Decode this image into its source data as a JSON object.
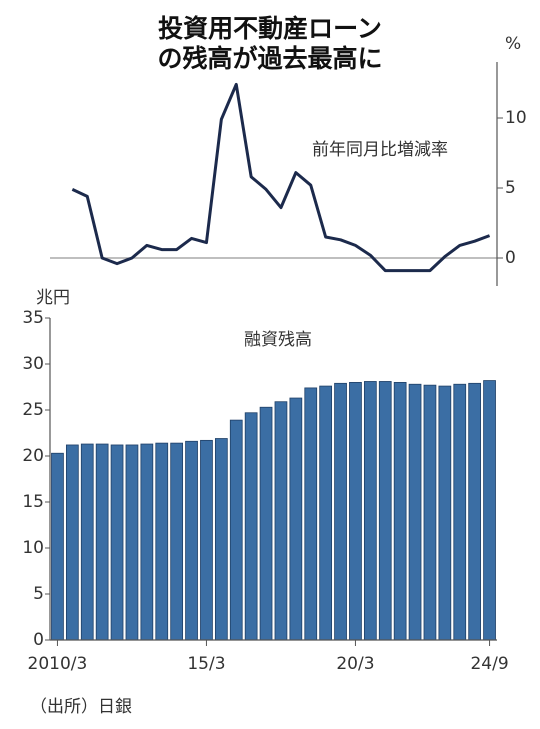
{
  "title": [
    "投資用不動産ローン",
    "の残高が過去最高に"
  ],
  "source": "（出所）日銀",
  "chart_data": [
    {
      "type": "line",
      "subtitle": "前年同月比増減率",
      "y2_label": "%",
      "categories": [
        "2010/3",
        null,
        null,
        null,
        null,
        null,
        null,
        null,
        null,
        null,
        "15/3",
        null,
        null,
        null,
        null,
        null,
        null,
        null,
        null,
        null,
        "20/3",
        null,
        null,
        null,
        null,
        null,
        null,
        null,
        null,
        "24/9"
      ],
      "series": [
        {
          "color": "#1c2a4c",
          "axis": "y2",
          "values": [
            null,
            4.9,
            4.4,
            0,
            -0.4,
            0,
            0.9,
            0.6,
            0.6,
            1.4,
            1.1,
            9.9,
            12.4,
            5.8,
            4.9,
            3.6,
            6.1,
            5.2,
            1.5,
            1.3,
            0.9,
            0.2,
            -0.9,
            -0.9,
            -0.9,
            -0.9,
            0.1,
            0.9,
            1.2,
            1.6
          ]
        }
      ],
      "y2lim": [
        -2,
        14
      ],
      "y2ticks": [
        0,
        5,
        10
      ]
    },
    {
      "type": "bar",
      "subtitle": "融資残高",
      "ylabel": "兆円",
      "color": "#3b6ea4",
      "categories": [
        "2010/3",
        null,
        null,
        null,
        null,
        null,
        null,
        null,
        null,
        null,
        "15/3",
        null,
        null,
        null,
        null,
        null,
        null,
        null,
        null,
        null,
        "20/3",
        null,
        null,
        null,
        null,
        null,
        null,
        null,
        null,
        "24/9"
      ],
      "values": [
        20.3,
        21.2,
        21.3,
        21.3,
        21.2,
        21.2,
        21.3,
        21.4,
        21.4,
        21.6,
        21.7,
        21.9,
        23.9,
        24.7,
        25.3,
        25.9,
        26.3,
        27.4,
        27.6,
        27.9,
        28.0,
        28.1,
        28.1,
        28.0,
        27.8,
        27.7,
        27.6,
        27.8,
        27.9,
        28.2
      ],
      "ylim": [
        0,
        35
      ],
      "yticks": [
        0,
        5,
        10,
        15,
        20,
        25,
        30,
        35
      ],
      "grid": false
    }
  ]
}
